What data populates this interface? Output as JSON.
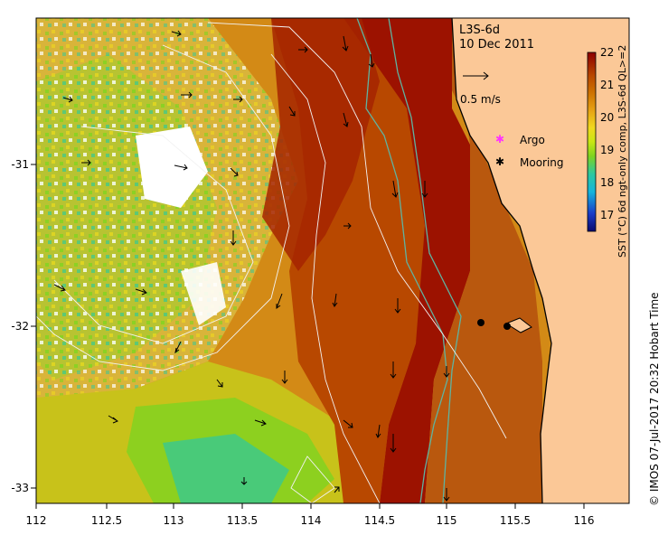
{
  "map": {
    "product": "L3S-6d",
    "date": "10 Dec 2011",
    "velocity_scale_label": "0.5 m/s",
    "legend": [
      {
        "label": "Argo",
        "marker": "magenta-star-icon",
        "color": "#ff33ff"
      },
      {
        "label": "Mooring",
        "marker": "black-star-icon",
        "color": "#000000"
      }
    ],
    "colorbar": {
      "title": "SST (°C) 6d ngt-only comp, L3S-6d QL>=2",
      "ticks": [
        "22",
        "21",
        "20",
        "19",
        "18",
        "17"
      ],
      "min": 16.5,
      "max": 22,
      "colors": [
        "#0a0a6e",
        "#1a3cc8",
        "#14b4dc",
        "#2cc8a0",
        "#7ed320",
        "#c8e614",
        "#f0d81e",
        "#e6a014",
        "#cc7000",
        "#b84800",
        "#a02000",
        "#8c0000"
      ]
    },
    "x_ticks": [
      "112",
      "112.5",
      "113",
      "113.5",
      "114",
      "114.5",
      "115",
      "115.5",
      "116"
    ],
    "y_ticks": [
      "-31",
      "-32",
      "-33"
    ],
    "x_range": [
      112,
      116.3
    ],
    "y_range": [
      -33.1,
      -30.2
    ],
    "moorings": [
      {
        "lon": 115.23,
        "lat": -31.98
      },
      {
        "lon": 115.42,
        "lat": -32.0
      }
    ],
    "land_color": "#fbc897",
    "credit": "© IMOS 07-Jul-2017 20:32 Hobart Time"
  }
}
